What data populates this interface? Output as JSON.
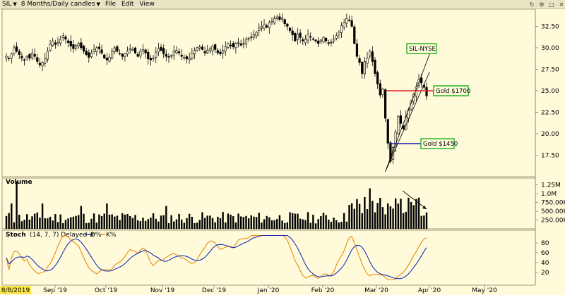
{
  "toolbar": {
    "symbol": "SIL",
    "period": "8 Months/Daily candles",
    "menu": [
      "File",
      "Edit",
      "View"
    ]
  },
  "chart_data": [
    {
      "type": "candlestick",
      "title": "SIL-NYSE",
      "y_ticks": [
        "32.50",
        "30.00",
        "27.50",
        "25.00",
        "22.50",
        "20.00",
        "17.50"
      ],
      "ylim": [
        15,
        34.5
      ],
      "annotations": [
        {
          "label": "SIL-NYSE"
        },
        {
          "label": "Gold $1700",
          "level": 25.0,
          "color": "#E21E26"
        },
        {
          "label": "Gold $1450",
          "level": 18.85,
          "color": "#1A1AB0"
        }
      ],
      "close": [
        29.0,
        28.8,
        29.3,
        30.0,
        29.6,
        29.2,
        28.8,
        28.6,
        29.0,
        28.8,
        29.4,
        29.0,
        28.4,
        28.0,
        28.3,
        28.8,
        29.6,
        30.4,
        30.8,
        30.4,
        30.6,
        31.0,
        31.4,
        31.0,
        30.6,
        30.2,
        29.9,
        30.3,
        30.5,
        30.0,
        29.6,
        29.2,
        28.9,
        29.4,
        29.8,
        30.0,
        29.9,
        29.4,
        28.8,
        28.6,
        28.9,
        29.6,
        30.0,
        29.6,
        29.3,
        29.0,
        29.3,
        29.6,
        29.9,
        29.8,
        29.4,
        29.0,
        29.6,
        29.8,
        29.4,
        28.7,
        28.6,
        28.8,
        29.5,
        29.9,
        29.7,
        29.3,
        29.0,
        28.9,
        29.1,
        29.6,
        29.7,
        29.4,
        29.0,
        28.9,
        28.7,
        28.8,
        29.4,
        29.7,
        30.0,
        30.1,
        29.8,
        29.4,
        29.7,
        29.9,
        30.2,
        29.8,
        29.4,
        29.3,
        29.7,
        30.1,
        30.5,
        30.3,
        30.1,
        30.5,
        30.6,
        30.3,
        30.5,
        31.0,
        31.1,
        31.2,
        31.6,
        31.8,
        32.3,
        32.5,
        32.7,
        32.4,
        32.9,
        33.1,
        33.4,
        33.6,
        33.3,
        33.5,
        32.8,
        32.5,
        32.0,
        31.5,
        30.8,
        31.6,
        31.2,
        30.8,
        31.0,
        31.5,
        31.3,
        31.0,
        30.8,
        30.5,
        30.9,
        31.2,
        30.8,
        30.5,
        30.6,
        31.0,
        31.4,
        31.8,
        32.6,
        33.0,
        33.4,
        33.2,
        32.5,
        30.5,
        29.0,
        28.3,
        27.0,
        28.4,
        28.8,
        29.6,
        28.4,
        27.0,
        25.8,
        24.5,
        25.2,
        21.8,
        18.9,
        16.8,
        18.4,
        20.2,
        22.0,
        21.2,
        20.6,
        22.0,
        22.8,
        23.8,
        24.6,
        25.5,
        26.3,
        25.9,
        25.4,
        24.4
      ],
      "volume_panel": {
        "title": "Volume",
        "y_ticks": [
          "1.25M",
          "1.0M",
          "750.00K",
          "500.00K",
          "250.00K"
        ]
      },
      "stoch_panel": {
        "title": "Stoch",
        "params": "(14, 7, 7) Delayed #",
        "legend": [
          "D%",
          "K%"
        ],
        "y_ticks": [
          "80",
          "60",
          "40",
          "20"
        ],
        "colors": {
          "D%": "#1A2FB8",
          "K%": "#E48A12"
        }
      },
      "x_tick_labels": [
        "8/8/2019",
        "Sep '19",
        "Oct '19",
        "Nov '19",
        "Dec '19",
        "Jan '20",
        "Feb '20",
        "Mar '20",
        "Apr '20",
        "May '20"
      ]
    }
  ]
}
